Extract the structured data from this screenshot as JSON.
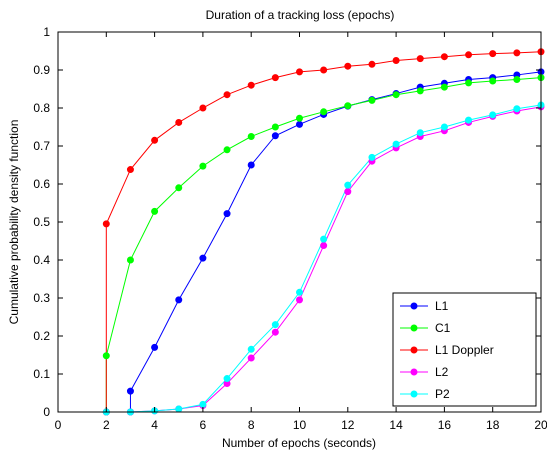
{
  "chart_data": {
    "type": "line",
    "title": "Duration of a tracking loss (epochs)",
    "xlabel": "Number of epochs (seconds)",
    "ylabel": "Cumulative probability density function",
    "xlim": [
      0,
      20
    ],
    "ylim": [
      0,
      1
    ],
    "xticks": [
      0,
      2,
      4,
      6,
      8,
      10,
      12,
      14,
      16,
      18,
      20
    ],
    "yticks": [
      0,
      0.1,
      0.2,
      0.3,
      0.4,
      0.5,
      0.6,
      0.7,
      0.8,
      0.9,
      1
    ],
    "ytick_labels": [
      "0",
      "0.1",
      "0.2",
      "0.3",
      "0.4",
      "0.5",
      "0.6",
      "0.7",
      "0.8",
      "0.9",
      "1"
    ],
    "grid": false,
    "legend_position": "bottom-right",
    "series": [
      {
        "name": "L1",
        "color": "#0000ff",
        "x": [
          2,
          3,
          3,
          4,
          5,
          6,
          7,
          8,
          9,
          10,
          11,
          12,
          13,
          14,
          15,
          16,
          17,
          18,
          19,
          20
        ],
        "y": [
          0,
          0,
          0.055,
          0.17,
          0.295,
          0.405,
          0.522,
          0.65,
          0.727,
          0.757,
          0.783,
          0.805,
          0.822,
          0.838,
          0.855,
          0.865,
          0.875,
          0.88,
          0.887,
          0.895
        ]
      },
      {
        "name": "C1",
        "color": "#00ff00",
        "x": [
          2,
          2,
          3,
          4,
          5,
          6,
          7,
          8,
          9,
          10,
          11,
          12,
          13,
          14,
          15,
          16,
          17,
          18,
          19,
          20
        ],
        "y": [
          0,
          0.148,
          0.4,
          0.528,
          0.59,
          0.647,
          0.69,
          0.725,
          0.75,
          0.773,
          0.79,
          0.806,
          0.82,
          0.835,
          0.845,
          0.855,
          0.866,
          0.871,
          0.875,
          0.88
        ]
      },
      {
        "name": "L1 Doppler",
        "color": "#ff0000",
        "x": [
          2,
          2,
          3,
          4,
          5,
          6,
          7,
          8,
          9,
          10,
          11,
          12,
          13,
          14,
          15,
          16,
          17,
          18,
          19,
          20
        ],
        "y": [
          0,
          0.495,
          0.638,
          0.715,
          0.762,
          0.8,
          0.835,
          0.86,
          0.88,
          0.895,
          0.9,
          0.91,
          0.915,
          0.925,
          0.93,
          0.935,
          0.94,
          0.943,
          0.945,
          0.948
        ]
      },
      {
        "name": "L2",
        "color": "#ff00ff",
        "x": [
          2,
          3,
          4,
          5,
          6,
          7,
          8,
          9,
          10,
          11,
          12,
          13,
          14,
          15,
          16,
          17,
          18,
          19,
          20
        ],
        "y": [
          0,
          0,
          0.003,
          0.008,
          0.017,
          0.075,
          0.142,
          0.21,
          0.295,
          0.438,
          0.58,
          0.66,
          0.695,
          0.725,
          0.74,
          0.762,
          0.778,
          0.792,
          0.803
        ]
      },
      {
        "name": "P2",
        "color": "#00ffff",
        "x": [
          2,
          3,
          4,
          5,
          6,
          7,
          8,
          9,
          10,
          11,
          12,
          13,
          14,
          15,
          16,
          17,
          18,
          19,
          20
        ],
        "y": [
          0,
          0,
          0.003,
          0.008,
          0.02,
          0.088,
          0.165,
          0.23,
          0.315,
          0.455,
          0.597,
          0.67,
          0.705,
          0.735,
          0.75,
          0.768,
          0.782,
          0.798,
          0.808
        ]
      }
    ]
  }
}
